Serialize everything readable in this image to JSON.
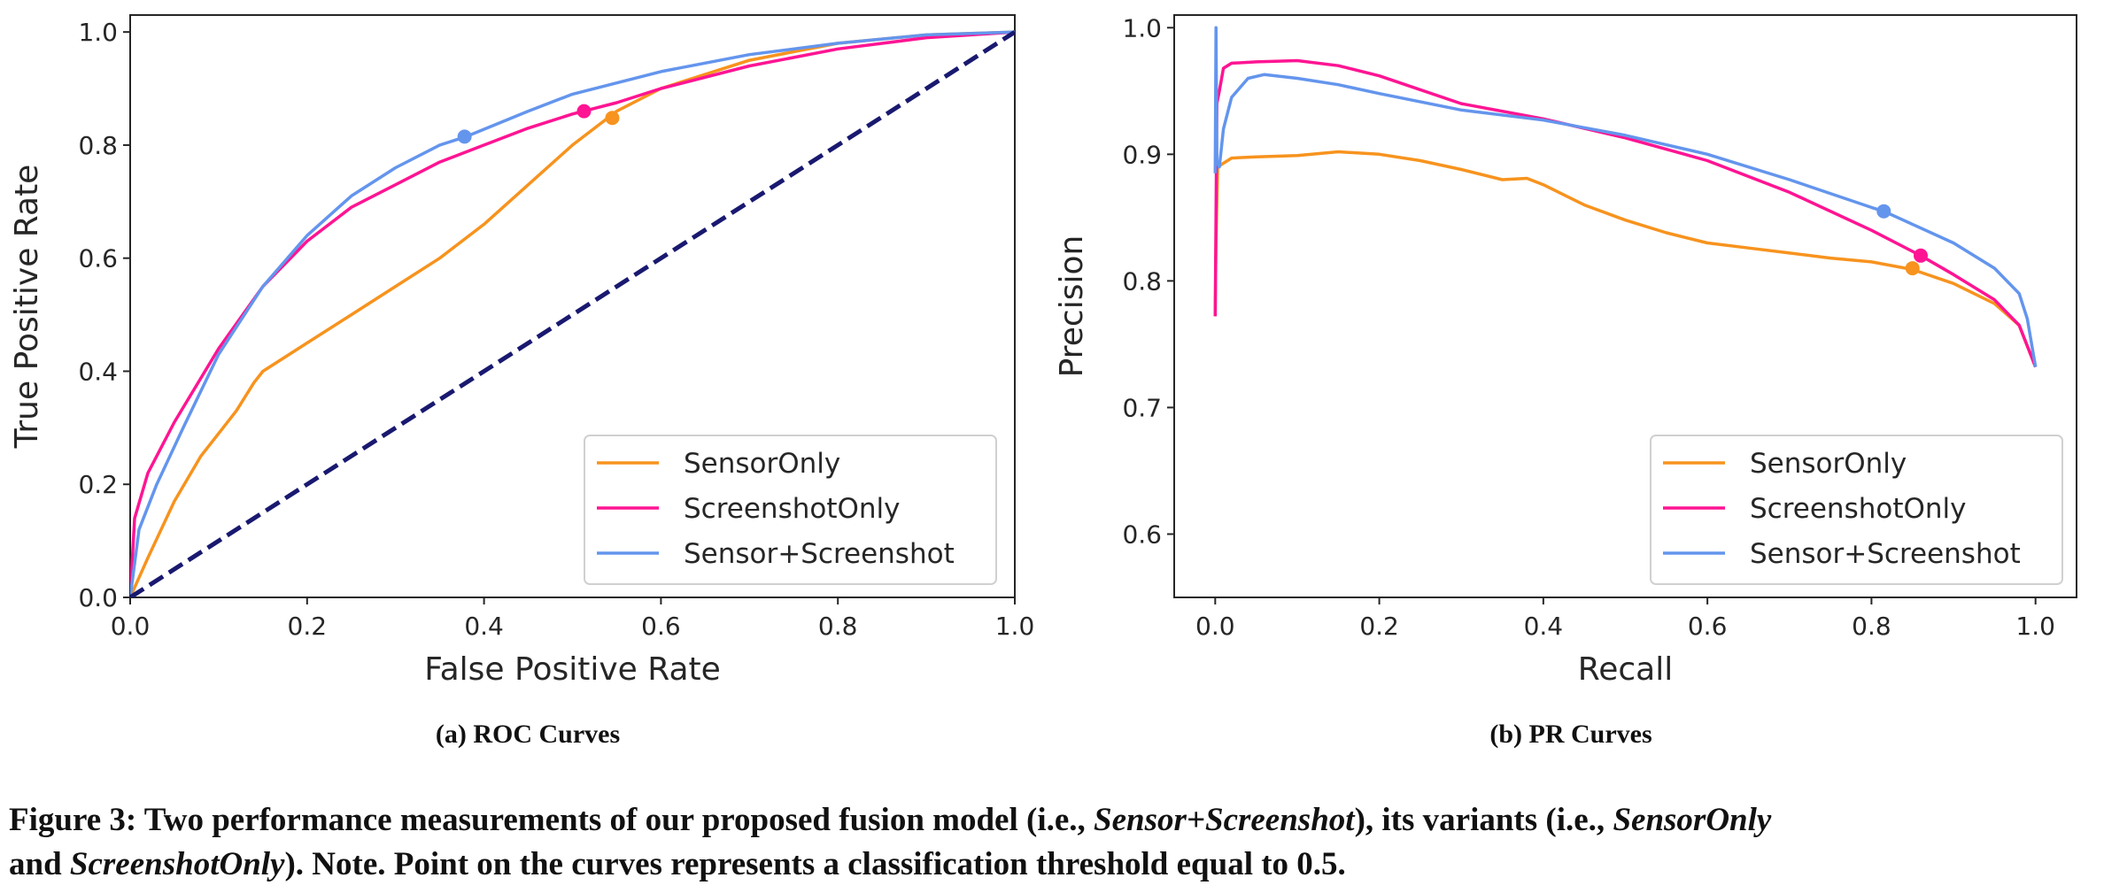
{
  "chart_data": [
    {
      "type": "line",
      "xlabel": "False Positive Rate",
      "ylabel": "True Positive Rate",
      "xlim": [
        0,
        1
      ],
      "ylim": [
        0,
        1.03
      ],
      "xticks": [
        "0.0",
        "0.2",
        "0.4",
        "0.6",
        "0.8",
        "1.0"
      ],
      "yticks": [
        "0.0",
        "0.2",
        "0.4",
        "0.6",
        "0.8",
        "1.0"
      ],
      "grid": false,
      "legend_position": "lower-right",
      "series": [
        {
          "name": "SensorOnly",
          "color": "#f7931e",
          "x": [
            0,
            0.02,
            0.05,
            0.08,
            0.12,
            0.14,
            0.15,
            0.2,
            0.25,
            0.3,
            0.35,
            0.4,
            0.45,
            0.5,
            0.55,
            0.6,
            0.7,
            0.8,
            0.9,
            1.0
          ],
          "y": [
            0,
            0.07,
            0.17,
            0.25,
            0.33,
            0.38,
            0.4,
            0.45,
            0.5,
            0.55,
            0.6,
            0.66,
            0.73,
            0.8,
            0.86,
            0.9,
            0.95,
            0.98,
            0.995,
            1.0
          ],
          "threshold_point": [
            0.545,
            0.848
          ]
        },
        {
          "name": "ScreenshotOnly",
          "color": "#ff1493",
          "x": [
            0,
            0.005,
            0.02,
            0.05,
            0.1,
            0.15,
            0.2,
            0.25,
            0.3,
            0.35,
            0.4,
            0.45,
            0.5,
            0.55,
            0.6,
            0.7,
            0.8,
            0.9,
            1.0
          ],
          "y": [
            0,
            0.14,
            0.22,
            0.31,
            0.44,
            0.55,
            0.63,
            0.69,
            0.73,
            0.77,
            0.8,
            0.83,
            0.855,
            0.875,
            0.9,
            0.94,
            0.97,
            0.99,
            1.0
          ],
          "threshold_point": [
            0.513,
            0.86
          ]
        },
        {
          "name": "Sensor+Screenshot",
          "color": "#6495ed",
          "x": [
            0,
            0.01,
            0.03,
            0.06,
            0.1,
            0.15,
            0.2,
            0.25,
            0.3,
            0.35,
            0.38,
            0.45,
            0.5,
            0.6,
            0.7,
            0.8,
            0.9,
            1.0
          ],
          "y": [
            0,
            0.12,
            0.2,
            0.3,
            0.43,
            0.55,
            0.64,
            0.71,
            0.76,
            0.8,
            0.815,
            0.86,
            0.89,
            0.93,
            0.96,
            0.98,
            0.995,
            1.0
          ],
          "threshold_point": [
            0.378,
            0.815
          ]
        },
        {
          "name": "",
          "color": "#191970",
          "dashed": true,
          "x": [
            0,
            1
          ],
          "y": [
            0,
            1
          ]
        }
      ],
      "subcaption": "(a) ROC Curves"
    },
    {
      "type": "line",
      "xlabel": "Recall",
      "ylabel": "Precision",
      "xlim": [
        -0.05,
        1.05
      ],
      "ylim": [
        0.55,
        1.01
      ],
      "xticks": [
        "0.0",
        "0.2",
        "0.4",
        "0.6",
        "0.8",
        "1.0"
      ],
      "yticks": [
        "0.6",
        "0.7",
        "0.8",
        "0.9",
        "1.0"
      ],
      "grid": false,
      "legend_position": "lower-right",
      "series": [
        {
          "name": "SensorOnly",
          "color": "#f7931e",
          "x": [
            0,
            0.001,
            0.003,
            0.01,
            0.02,
            0.05,
            0.1,
            0.15,
            0.2,
            0.25,
            0.3,
            0.35,
            0.38,
            0.4,
            0.45,
            0.5,
            0.55,
            0.6,
            0.65,
            0.7,
            0.75,
            0.8,
            0.85,
            0.9,
            0.95,
            0.98,
            1.0
          ],
          "y": [
            0.772,
            0.83,
            0.89,
            0.893,
            0.897,
            0.898,
            0.899,
            0.902,
            0.9,
            0.895,
            0.888,
            0.88,
            0.881,
            0.876,
            0.86,
            0.848,
            0.838,
            0.83,
            0.826,
            0.822,
            0.818,
            0.815,
            0.809,
            0.798,
            0.782,
            0.765,
            0.732
          ],
          "threshold_point": [
            0.85,
            0.81
          ]
        },
        {
          "name": "ScreenshotOnly",
          "color": "#ff1493",
          "x": [
            0,
            0.002,
            0.005,
            0.01,
            0.02,
            0.05,
            0.1,
            0.15,
            0.2,
            0.3,
            0.4,
            0.5,
            0.6,
            0.7,
            0.8,
            0.86,
            0.9,
            0.95,
            0.98,
            1.0
          ],
          "y": [
            0.772,
            0.94,
            0.95,
            0.968,
            0.972,
            0.973,
            0.974,
            0.97,
            0.962,
            0.94,
            0.928,
            0.913,
            0.895,
            0.87,
            0.84,
            0.82,
            0.805,
            0.785,
            0.765,
            0.732
          ],
          "threshold_point": [
            0.86,
            0.82
          ]
        },
        {
          "name": "Sensor+Screenshot",
          "color": "#6495ed",
          "x": [
            0,
            0.001,
            0.002,
            0.005,
            0.01,
            0.02,
            0.04,
            0.06,
            0.1,
            0.15,
            0.2,
            0.3,
            0.4,
            0.5,
            0.6,
            0.7,
            0.8,
            0.815,
            0.9,
            0.95,
            0.98,
            0.99,
            1.0
          ],
          "y": [
            0.885,
            1.0,
            0.895,
            0.89,
            0.92,
            0.945,
            0.96,
            0.963,
            0.96,
            0.955,
            0.948,
            0.935,
            0.927,
            0.915,
            0.9,
            0.88,
            0.858,
            0.855,
            0.83,
            0.81,
            0.79,
            0.77,
            0.732
          ],
          "threshold_point": [
            0.815,
            0.855
          ]
        }
      ],
      "subcaption": "(b) PR Curves"
    }
  ],
  "caption": {
    "part1": "Figure 3: Two performance measurements of our proposed fusion model (i.e., ",
    "em1": "Sensor+Screenshot",
    "part2": "), its variants (i.e., ",
    "em2": "SensorOnly",
    "part3": "and ",
    "em3": "ScreenshotOnly",
    "part4": "). Note. Point on the curves represents a classification threshold equal to 0.5."
  }
}
